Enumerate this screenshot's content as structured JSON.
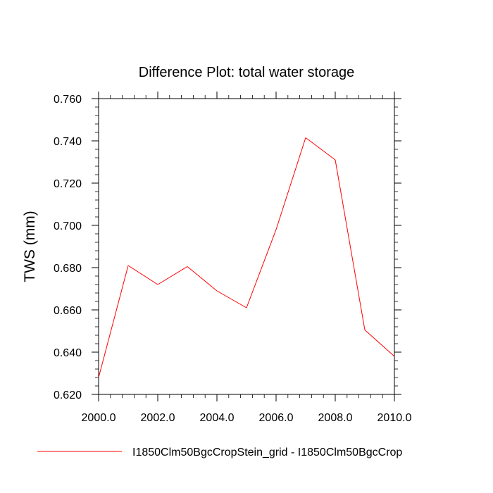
{
  "chart_data": {
    "type": "line",
    "title": "Difference Plot: total water storage",
    "xlabel": "",
    "ylabel": "TWS  (mm)",
    "xlim": [
      2000,
      2010
    ],
    "ylim": [
      0.62,
      0.76
    ],
    "x_ticks": [
      "2000.0",
      "2002.0",
      "2004.0",
      "2006.0",
      "2008.0",
      "2010.0"
    ],
    "y_ticks": [
      "0.620",
      "0.640",
      "0.660",
      "0.680",
      "0.700",
      "0.720",
      "0.740",
      "0.760"
    ],
    "grid": false,
    "legend_position": "bottom",
    "series": [
      {
        "name": "I1850Clm50BgcCropStein_grid - I1850Clm50BgcCrop",
        "color": "#ff0000",
        "x": [
          2000,
          2001,
          2002,
          2003,
          2004,
          2005,
          2006,
          2007,
          2008,
          2009,
          2010
        ],
        "values": [
          0.628,
          0.681,
          0.672,
          0.6805,
          0.669,
          0.661,
          0.698,
          0.7415,
          0.731,
          0.6505,
          0.638
        ]
      }
    ]
  }
}
